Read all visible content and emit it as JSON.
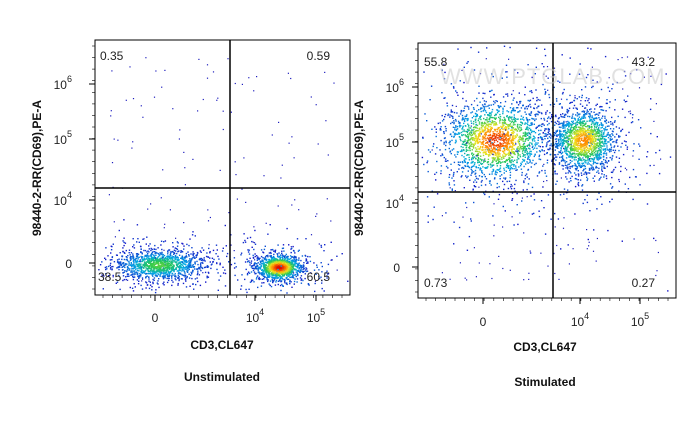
{
  "chart_data": [
    {
      "type": "scatter",
      "condition": "Unstimulated",
      "xlabel": "CD3,CL647",
      "ylabel": "98440-2-RR(CD69),PE-A",
      "x_ticks": [
        {
          "label": "0",
          "exp": ""
        },
        {
          "label": "10",
          "exp": "4"
        },
        {
          "label": "10",
          "exp": "5"
        }
      ],
      "y_ticks": [
        {
          "label": "0",
          "exp": ""
        },
        {
          "label": "10",
          "exp": "4"
        },
        {
          "label": "10",
          "exp": "5"
        },
        {
          "label": "10",
          "exp": "6"
        }
      ],
      "quadrants": {
        "upper_left": "0.35",
        "upper_right": "0.59",
        "lower_left": "38.5",
        "lower_right": "60.5"
      },
      "populations": [
        {
          "cx": 0.25,
          "cy": 0.12,
          "sx": 0.09,
          "sy": 0.03,
          "n": 1400,
          "peak": 0.55
        },
        {
          "cx": 0.72,
          "cy": 0.11,
          "sx": 0.045,
          "sy": 0.025,
          "n": 1300,
          "peak": 1.0
        }
      ]
    },
    {
      "type": "scatter",
      "condition": "Stimulated",
      "xlabel": "CD3,CL647",
      "ylabel": "98440-2-RR(CD69),PE-A",
      "watermark": "WWW.PTGLAB.COM",
      "x_ticks": [
        {
          "label": "0",
          "exp": ""
        },
        {
          "label": "10",
          "exp": "4"
        },
        {
          "label": "10",
          "exp": "5"
        }
      ],
      "y_ticks": [
        {
          "label": "0",
          "exp": ""
        },
        {
          "label": "10",
          "exp": "4"
        },
        {
          "label": "10",
          "exp": "5"
        },
        {
          "label": "10",
          "exp": "6"
        }
      ],
      "quadrants": {
        "upper_left": "55.8",
        "upper_right": "43.2",
        "lower_left": "0.73",
        "lower_right": "0.27"
      },
      "populations": [
        {
          "cx": 0.3,
          "cy": 0.62,
          "sx": 0.1,
          "sy": 0.075,
          "n": 2000,
          "peak": 0.95
        },
        {
          "cx": 0.64,
          "cy": 0.62,
          "sx": 0.06,
          "sy": 0.06,
          "n": 1600,
          "peak": 0.85
        }
      ]
    }
  ]
}
